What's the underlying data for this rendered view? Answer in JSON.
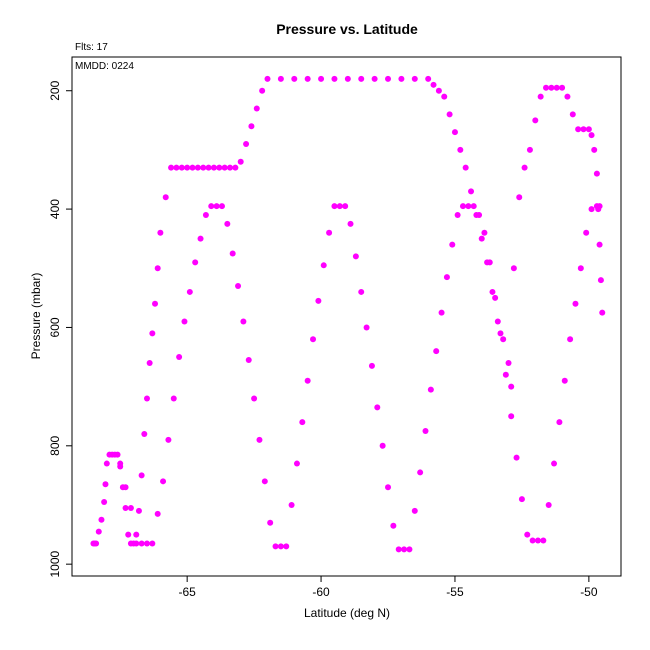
{
  "chart_data": {
    "type": "scatter",
    "title": "Pressure vs. Latitude",
    "xlabel": "Latitude (deg N)",
    "ylabel": "Pressure (mbar)",
    "annotations": {
      "flts": "Flts: 17",
      "mmdd": "MMDD: 0224"
    },
    "xlim": [
      -69.3,
      -48.8
    ],
    "ylim": [
      1020,
      143
    ],
    "y_reversed": true,
    "grid": false,
    "legend": "none",
    "xticks": [
      -65,
      -60,
      -55,
      -50
    ],
    "yticks": [
      200,
      400,
      600,
      800,
      1000
    ],
    "color": "#ff00ff",
    "series": [
      {
        "name": "",
        "x": [
          -68.5,
          -68.45,
          -68.4,
          -68.3,
          -68.2,
          -68.1,
          -68.05,
          -68.0,
          -67.9,
          -67.8,
          -67.7,
          -67.6,
          -67.5,
          -67.4,
          -67.3,
          -67.2,
          -67.1,
          -67.0,
          -66.9,
          -66.8,
          -66.7,
          -66.6,
          -66.5,
          -66.4,
          -66.3,
          -66.2,
          -66.1,
          -66.0,
          -65.8,
          -65.6,
          -65.4,
          -65.2,
          -65.0,
          -64.8,
          -64.6,
          -64.4,
          -64.2,
          -64.0,
          -63.8,
          -63.6,
          -63.4,
          -63.2,
          -63.0,
          -62.8,
          -62.6,
          -62.4,
          -62.2,
          -62.0,
          -61.5,
          -61.0,
          -60.5,
          -60.0,
          -59.5,
          -59.0,
          -58.5,
          -58.0,
          -57.5,
          -57.0,
          -56.5,
          -56.0,
          -55.8,
          -55.6,
          -55.4,
          -55.2,
          -55.0,
          -54.8,
          -54.6,
          -54.4,
          -54.2,
          -54.0,
          -53.8,
          -53.6,
          -53.4,
          -53.2,
          -53.0,
          -52.9,
          -52.8,
          -52.6,
          -52.4,
          -52.2,
          -52.0,
          -51.8,
          -51.6,
          -51.4,
          -51.2,
          -51.0,
          -50.8,
          -50.6,
          -50.4,
          -50.2,
          -50.0,
          -49.9,
          -49.8,
          -49.7,
          -49.65,
          -49.6,
          -49.55,
          -49.5
        ],
        "y": [
          965,
          965,
          965,
          945,
          925,
          895,
          865,
          830,
          815,
          815,
          815,
          815,
          835,
          870,
          905,
          950,
          965,
          965,
          965,
          910,
          850,
          780,
          720,
          660,
          610,
          560,
          500,
          440,
          380,
          330,
          330,
          330,
          330,
          330,
          330,
          330,
          330,
          330,
          330,
          330,
          330,
          330,
          320,
          290,
          260,
          230,
          200,
          180,
          180,
          180,
          180,
          180,
          180,
          180,
          180,
          180,
          180,
          180,
          180,
          180,
          190,
          200,
          210,
          240,
          270,
          300,
          330,
          370,
          410,
          450,
          490,
          540,
          590,
          620,
          660,
          700,
          500,
          380,
          330,
          300,
          250,
          210,
          195,
          195,
          195,
          195,
          210,
          240,
          265,
          265,
          265,
          275,
          300,
          340,
          400,
          460,
          520,
          575
        ]
      },
      {
        "name": "",
        "x": [
          -67.5,
          -67.3,
          -67.1,
          -66.9,
          -66.7,
          -66.5,
          -66.3,
          -66.1,
          -65.9,
          -65.7,
          -65.5,
          -65.3,
          -65.1,
          -64.9,
          -64.7,
          -64.5,
          -64.3,
          -64.1,
          -63.9,
          -63.7,
          -63.5,
          -63.3,
          -63.1,
          -62.9,
          -62.7,
          -62.5,
          -62.3,
          -62.1,
          -61.9,
          -61.7,
          -61.5,
          -61.3,
          -61.1,
          -60.9,
          -60.7,
          -60.5,
          -60.3,
          -60.1,
          -59.9,
          -59.7,
          -59.5,
          -59.3,
          -59.1,
          -58.9,
          -58.7,
          -58.5,
          -58.3,
          -58.1,
          -57.9,
          -57.7,
          -57.5,
          -57.3,
          -57.1,
          -56.9,
          -56.7,
          -56.5,
          -56.3,
          -56.1,
          -55.9,
          -55.7,
          -55.5,
          -55.3,
          -55.1,
          -54.9,
          -54.7,
          -54.5,
          -54.3,
          -54.1,
          -53.9,
          -53.7,
          -53.5,
          -53.3,
          -53.1,
          -52.9,
          -52.7,
          -52.5,
          -52.3,
          -52.1,
          -51.9,
          -51.7,
          -51.5,
          -51.3,
          -51.1,
          -50.9,
          -50.7,
          -50.5,
          -50.3,
          -50.1,
          -49.9,
          -49.7,
          -49.6
        ],
        "y": [
          830,
          870,
          905,
          950,
          965,
          965,
          965,
          915,
          860,
          790,
          720,
          650,
          590,
          540,
          490,
          450,
          410,
          395,
          395,
          395,
          425,
          475,
          530,
          590,
          655,
          720,
          790,
          860,
          930,
          970,
          970,
          970,
          900,
          830,
          760,
          690,
          620,
          555,
          495,
          440,
          395,
          395,
          395,
          425,
          480,
          540,
          600,
          665,
          735,
          800,
          870,
          935,
          975,
          975,
          975,
          910,
          845,
          775,
          705,
          640,
          575,
          515,
          460,
          410,
          395,
          395,
          395,
          410,
          440,
          490,
          550,
          610,
          680,
          750,
          820,
          890,
          950,
          960,
          960,
          960,
          900,
          830,
          760,
          690,
          620,
          560,
          500,
          440,
          400,
          395,
          395
        ]
      }
    ]
  }
}
